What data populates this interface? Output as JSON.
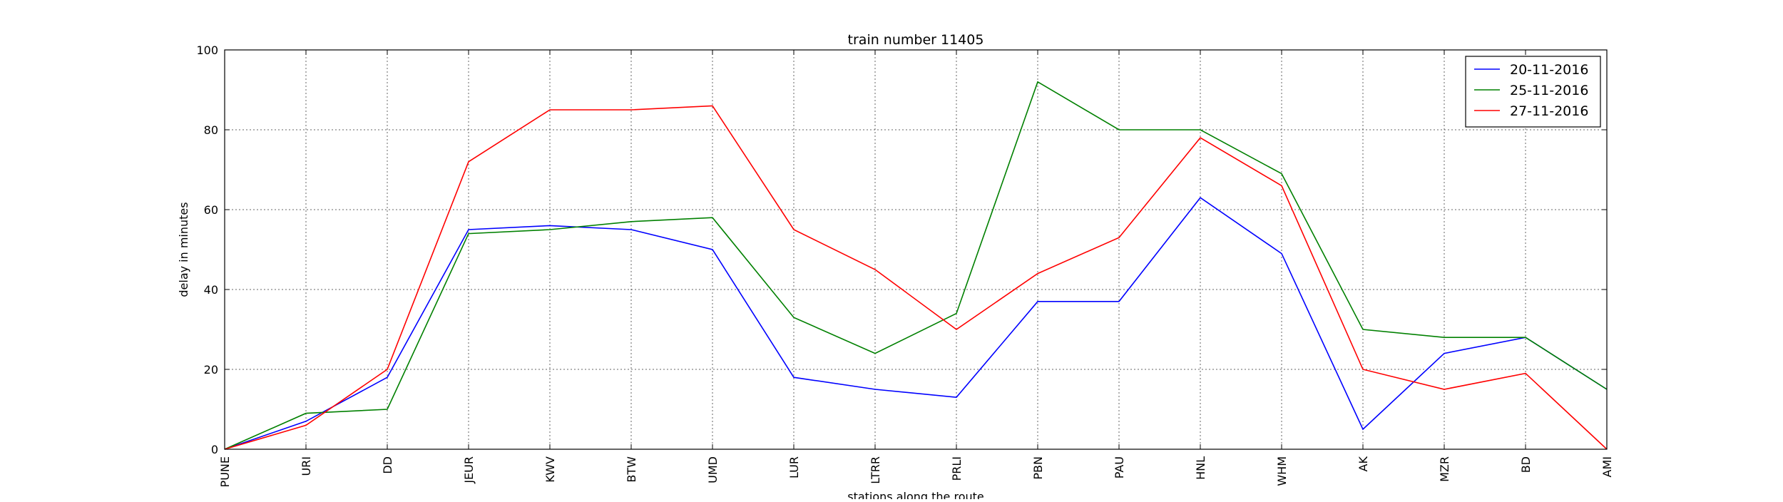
{
  "chart_data": {
    "type": "line",
    "title": "train number 11405",
    "xlabel": "stations along the route",
    "ylabel": "delay in minutes",
    "categories": [
      "PUNE",
      "URI",
      "DD",
      "JEUR",
      "KWV",
      "BTW",
      "UMD",
      "LUR",
      "LTRR",
      "PRLI",
      "PBN",
      "PAU",
      "HNL",
      "WHM",
      "AK",
      "MZR",
      "BD",
      "AMI"
    ],
    "ylim": [
      0,
      100
    ],
    "yticks": [
      0,
      20,
      40,
      60,
      80,
      100
    ],
    "grid": true,
    "legend_position": "top-right",
    "series": [
      {
        "name": "20-11-2016",
        "color": "#0000ff",
        "values": [
          0,
          7,
          18,
          55,
          56,
          55,
          50,
          18,
          15,
          13,
          37,
          37,
          63,
          49,
          5,
          24,
          28,
          15
        ]
      },
      {
        "name": "25-11-2016",
        "color": "#008000",
        "values": [
          0,
          9,
          10,
          54,
          55,
          57,
          58,
          33,
          24,
          34,
          92,
          80,
          80,
          69,
          30,
          28,
          28,
          15
        ]
      },
      {
        "name": "27-11-2016",
        "color": "#ff0000",
        "values": [
          0,
          6,
          20,
          72,
          85,
          85,
          86,
          55,
          45,
          30,
          44,
          53,
          78,
          66,
          20,
          15,
          19,
          0
        ]
      }
    ]
  }
}
